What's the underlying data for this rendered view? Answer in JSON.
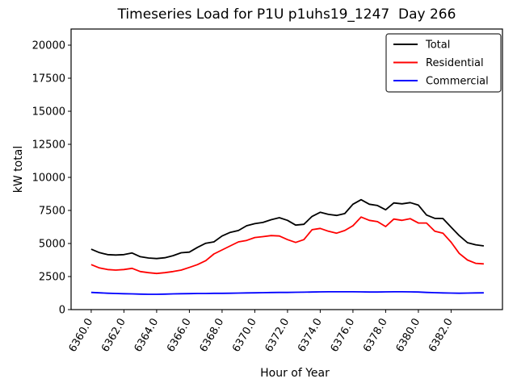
{
  "window": {
    "title": "Timeseries Load for P1U p1uhs19_1247  Day 266"
  },
  "chart_data": {
    "type": "line",
    "title": "Timeseries Load for P1U p1uhs19_1247  Day 266",
    "xlabel": "Hour of Year",
    "ylabel": "kW total",
    "grid": false,
    "legend_position": "upper right",
    "xlim": [
      6358.77,
      6385.14
    ],
    "ylim": [
      0,
      21220
    ],
    "x_ticks": [
      6360,
      6362,
      6364,
      6366,
      6368,
      6370,
      6372,
      6374,
      6376,
      6378,
      6380,
      6382
    ],
    "x_tick_labels": [
      "6360.0",
      "6362.0",
      "6364.0",
      "6366.0",
      "6368.0",
      "6370.0",
      "6372.0",
      "6374.0",
      "6376.0",
      "6378.0",
      "6380.0",
      "6382.0"
    ],
    "y_ticks": [
      0,
      2500,
      5000,
      7500,
      10000,
      12500,
      15000,
      17500,
      20000
    ],
    "y_tick_labels": [
      "0",
      "2500",
      "5000",
      "7500",
      "10000",
      "12500",
      "15000",
      "17500",
      "20000"
    ],
    "x": [
      6360.0,
      6360.5,
      6361.0,
      6361.5,
      6362.0,
      6362.5,
      6363.0,
      6363.5,
      6364.0,
      6364.5,
      6365.0,
      6365.5,
      6366.0,
      6366.5,
      6367.0,
      6367.5,
      6368.0,
      6368.5,
      6369.0,
      6369.5,
      6370.0,
      6370.5,
      6371.0,
      6371.5,
      6372.0,
      6372.5,
      6373.0,
      6373.5,
      6374.0,
      6374.5,
      6375.0,
      6375.5,
      6376.0,
      6376.5,
      6377.0,
      6377.5,
      6378.0,
      6378.5,
      6379.0,
      6379.5,
      6380.0,
      6380.5,
      6381.0,
      6381.5,
      6382.0,
      6382.5,
      6383.0,
      6383.5,
      6384.0
    ],
    "series": [
      {
        "name": "Total",
        "color": "#000000",
        "values": [
          4570,
          4310,
          4160,
          4130,
          4160,
          4280,
          4000,
          3900,
          3860,
          3920,
          4080,
          4300,
          4350,
          4710,
          5020,
          5120,
          5570,
          5840,
          5980,
          6340,
          6500,
          6590,
          6800,
          6950,
          6750,
          6390,
          6450,
          7050,
          7360,
          7200,
          7120,
          7260,
          7970,
          8310,
          7970,
          7870,
          7550,
          8070,
          8000,
          8090,
          7900,
          7150,
          6900,
          6890,
          6240,
          5600,
          5060,
          4900,
          4820
        ]
      },
      {
        "name": "Residential",
        "color": "#ff0000",
        "values": [
          3400,
          3150,
          3030,
          2990,
          3030,
          3120,
          2880,
          2790,
          2730,
          2790,
          2880,
          2990,
          3190,
          3400,
          3700,
          4210,
          4510,
          4820,
          5120,
          5230,
          5450,
          5520,
          5600,
          5570,
          5290,
          5080,
          5290,
          6040,
          6140,
          5930,
          5780,
          5980,
          6340,
          7000,
          6750,
          6650,
          6280,
          6850,
          6750,
          6880,
          6550,
          6550,
          5930,
          5780,
          5100,
          4250,
          3750,
          3500,
          3460
        ]
      },
      {
        "name": "Commercial",
        "color": "#0000ff",
        "values": [
          1300,
          1270,
          1240,
          1220,
          1200,
          1190,
          1170,
          1160,
          1160,
          1170,
          1190,
          1200,
          1210,
          1220,
          1220,
          1230,
          1230,
          1240,
          1250,
          1260,
          1270,
          1280,
          1290,
          1300,
          1300,
          1310,
          1320,
          1330,
          1340,
          1350,
          1350,
          1350,
          1350,
          1340,
          1330,
          1330,
          1340,
          1350,
          1350,
          1340,
          1330,
          1300,
          1280,
          1260,
          1250,
          1240,
          1250,
          1260,
          1270
        ]
      }
    ]
  }
}
